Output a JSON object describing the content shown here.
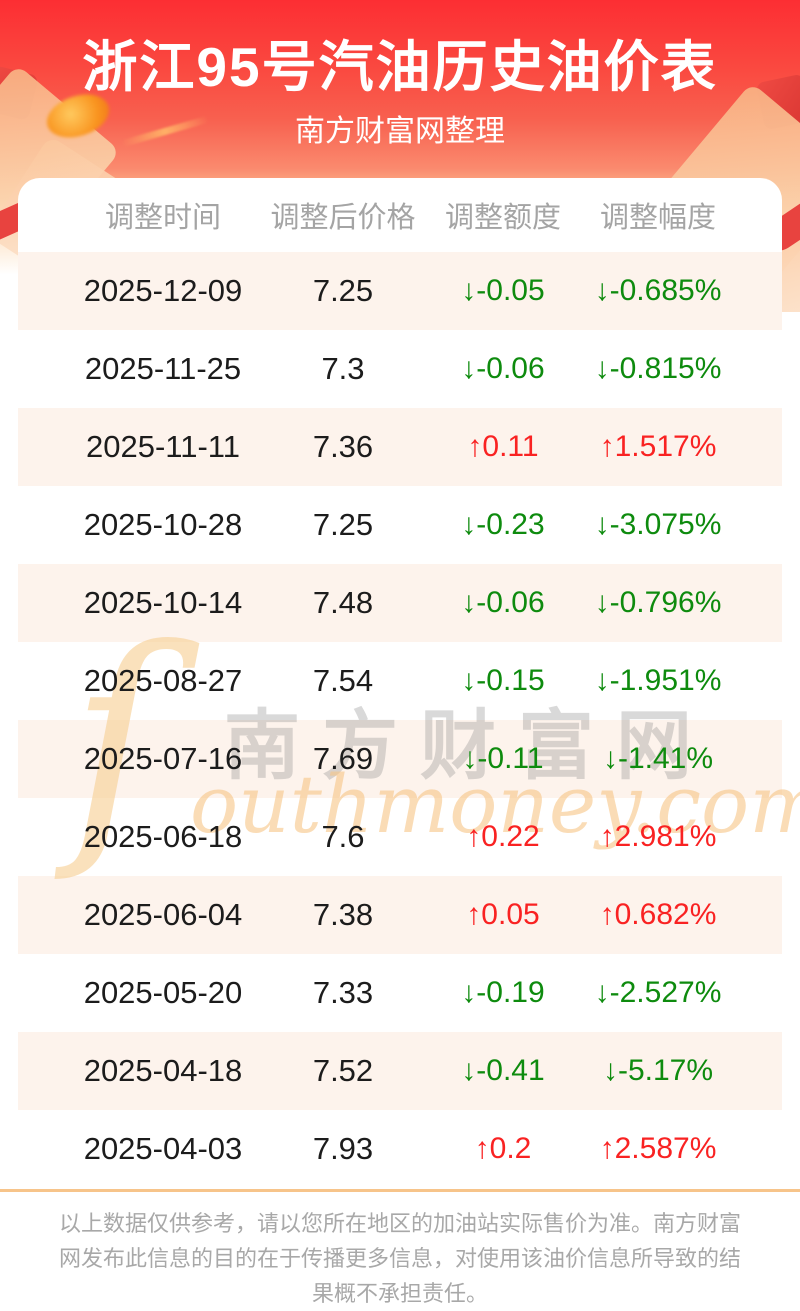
{
  "page": {
    "title": "浙江95号汽油历史油价表",
    "subtitle": "南方财富网整理",
    "footer_disclaimer": "以上数据仅供参考，请以您所在地区的加油站实际售价为准。南方财富网发布此信息的目的在于传播更多信息，对使用该油价信息所导致的结果概不承担责任。"
  },
  "watermark": {
    "initial": "ſ",
    "cn": "南方财富网",
    "en": "outhmoney.com"
  },
  "colors": {
    "banner_red_top": "#fc2e33",
    "banner_orange_bottom": "#fdc392",
    "row_alt_bg": "#fdf3ec",
    "up_red": "#f92222",
    "down_green": "#0e8b0e",
    "divider_tan": "#f7c48a",
    "header_gray": "#a4a4a4"
  },
  "table": {
    "columns": [
      "调整时间",
      "调整后价格",
      "调整额度",
      "调整幅度"
    ],
    "rows": [
      {
        "date": "2025-12-09",
        "price": "7.25",
        "change": "↓-0.05",
        "pct": "↓-0.685%",
        "dir": "down"
      },
      {
        "date": "2025-11-25",
        "price": "7.3",
        "change": "↓-0.06",
        "pct": "↓-0.815%",
        "dir": "down"
      },
      {
        "date": "2025-11-11",
        "price": "7.36",
        "change": "↑0.11",
        "pct": "↑1.517%",
        "dir": "up"
      },
      {
        "date": "2025-10-28",
        "price": "7.25",
        "change": "↓-0.23",
        "pct": "↓-3.075%",
        "dir": "down"
      },
      {
        "date": "2025-10-14",
        "price": "7.48",
        "change": "↓-0.06",
        "pct": "↓-0.796%",
        "dir": "down"
      },
      {
        "date": "2025-08-27",
        "price": "7.54",
        "change": "↓-0.15",
        "pct": "↓-1.951%",
        "dir": "down"
      },
      {
        "date": "2025-07-16",
        "price": "7.69",
        "change": "↓-0.11",
        "pct": "↓-1.41%",
        "dir": "down"
      },
      {
        "date": "2025-06-18",
        "price": "7.6",
        "change": "↑0.22",
        "pct": "↑2.981%",
        "dir": "up"
      },
      {
        "date": "2025-06-04",
        "price": "7.38",
        "change": "↑0.05",
        "pct": "↑0.682%",
        "dir": "up"
      },
      {
        "date": "2025-05-20",
        "price": "7.33",
        "change": "↓-0.19",
        "pct": "↓-2.527%",
        "dir": "down"
      },
      {
        "date": "2025-04-18",
        "price": "7.52",
        "change": "↓-0.41",
        "pct": "↓-5.17%",
        "dir": "down"
      },
      {
        "date": "2025-04-03",
        "price": "7.93",
        "change": "↑0.2",
        "pct": "↑2.587%",
        "dir": "up"
      }
    ]
  }
}
